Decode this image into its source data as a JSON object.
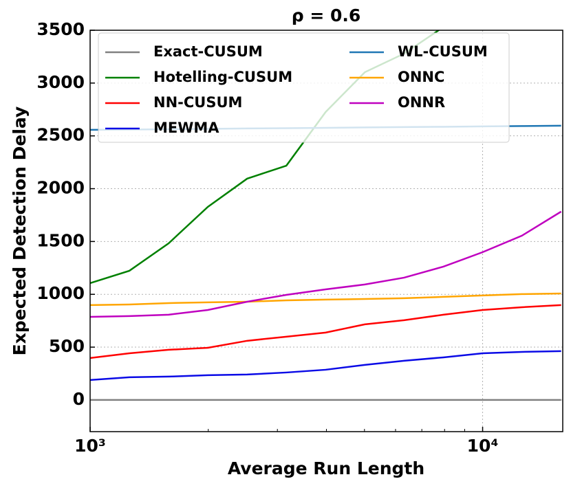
{
  "chart_data": {
    "type": "line",
    "title": "ρ = 0.6",
    "x_label": "Average Run Length",
    "y_label": "Expected Detection Delay",
    "x_scale": "log",
    "grid": true,
    "legend": "upper left",
    "xlim": [
      1000,
      16000
    ],
    "ylim": [
      -300,
      3500
    ],
    "xticks": [
      {
        "value": 1000,
        "label": "10³"
      },
      {
        "value": 10000,
        "label": "10⁴"
      }
    ],
    "xminorticks": [
      2000,
      3000,
      4000,
      5000,
      6000,
      7000,
      8000,
      9000
    ],
    "yticks": [
      0,
      500,
      1000,
      1500,
      2000,
      2500,
      3000,
      3500
    ],
    "x": [
      1000,
      1259,
      1585,
      1995,
      2512,
      3162,
      3981,
      5012,
      6310,
      7943,
      10000,
      12589,
      15849
    ],
    "series": [
      {
        "name": "Exact-CUSUM",
        "color": "#808080",
        "values": [
          0,
          0,
          0,
          0,
          0,
          0,
          0,
          0,
          0,
          0,
          0,
          0,
          0
        ]
      },
      {
        "name": "Hotelling-CUSUM",
        "color": "#008000",
        "values": [
          1106,
          1223,
          1483,
          1828,
          2095,
          2218,
          2726,
          3103,
          3279,
          3530,
          null,
          null,
          null
        ]
      },
      {
        "name": "NN-CUSUM",
        "color": "#ff0000",
        "values": [
          397,
          442,
          475,
          494,
          560,
          599,
          638,
          716,
          755,
          807,
          852,
          878,
          898
        ]
      },
      {
        "name": "MEWMA",
        "color": "#0a0ae6",
        "values": [
          189,
          215,
          221,
          234,
          241,
          260,
          286,
          332,
          371,
          403,
          442,
          455,
          462
        ]
      },
      {
        "name": "WL-CUSUM",
        "color": "#1f77b4",
        "values": [
          2557,
          2560,
          2563,
          2566,
          2570,
          2573,
          2576,
          2580,
          2583,
          2586,
          2590,
          2593,
          2596
        ]
      },
      {
        "name": "ONNC",
        "color": "#ffa500",
        "values": [
          898,
          904,
          917,
          924,
          930,
          943,
          950,
          956,
          963,
          976,
          989,
          1002,
          1008
        ]
      },
      {
        "name": "ONNR",
        "color": "#bf00bf",
        "values": [
          787,
          794,
          807,
          852,
          930,
          995,
          1047,
          1093,
          1158,
          1262,
          1399,
          1555,
          1783
        ]
      }
    ]
  }
}
